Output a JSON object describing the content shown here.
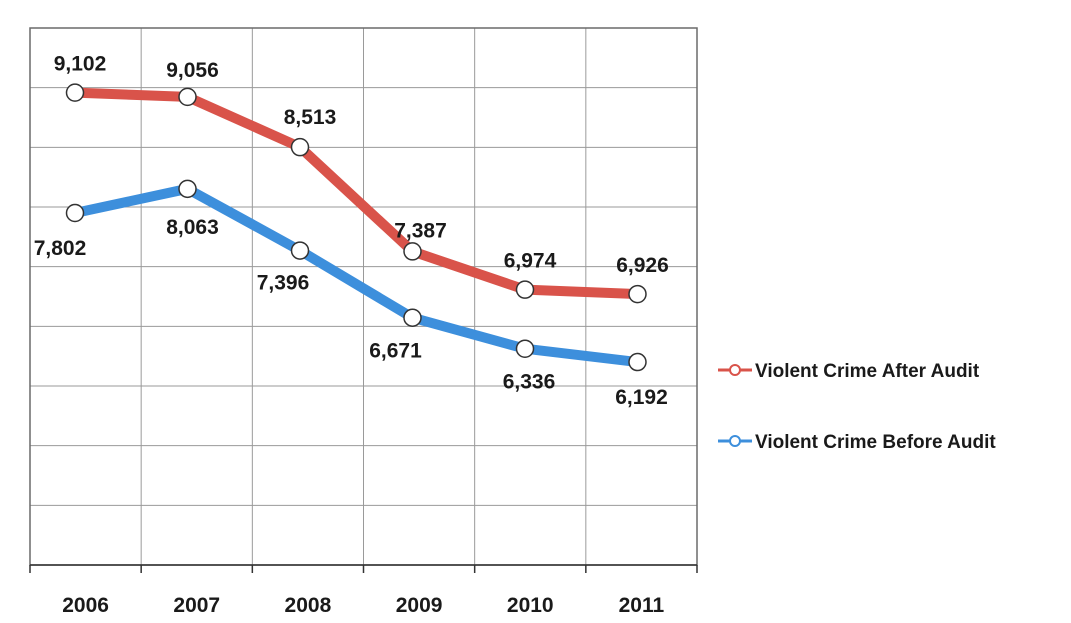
{
  "chart_data": {
    "type": "line",
    "categories": [
      "2006",
      "2007",
      "2008",
      "2009",
      "2010",
      "2011"
    ],
    "series": [
      {
        "name": "Violent Crime After Audit",
        "color": "#d9534a",
        "values": [
          9102,
          9056,
          8513,
          7387,
          6974,
          6926
        ],
        "labels": [
          "9,102",
          "9,056",
          "8,513",
          "7,387",
          "6,974",
          "6,926"
        ]
      },
      {
        "name": "Violent Crime Before Audit",
        "color": "#3d8fdc",
        "values": [
          7802,
          8063,
          7396,
          6671,
          6336,
          6192
        ],
        "labels": [
          "7,802",
          "8,063",
          "7,396",
          "6,671",
          "6,336",
          "6,192"
        ]
      }
    ],
    "ylim": [
      4000,
      9800
    ],
    "grid": true,
    "legend": "right"
  }
}
